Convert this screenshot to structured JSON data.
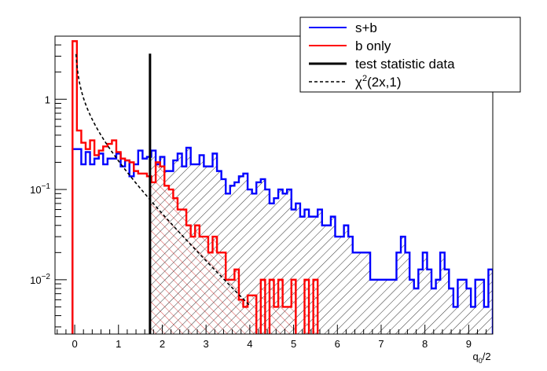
{
  "chart_data": {
    "type": "histogram",
    "xlabel": "q",
    "xlabel_sub": "0",
    "xlabel_suffix": "/2",
    "xlim": [
      -0.45,
      9.55
    ],
    "ylim": [
      0.0025,
      5
    ],
    "yscale": "log",
    "x_ticks": [
      {
        "value": 0,
        "label": "0"
      },
      {
        "value": 1,
        "label": "1"
      },
      {
        "value": 2,
        "label": "2"
      },
      {
        "value": 3,
        "label": "3"
      },
      {
        "value": 4,
        "label": "4"
      },
      {
        "value": 5,
        "label": "5"
      },
      {
        "value": 6,
        "label": "6"
      },
      {
        "value": 7,
        "label": "7"
      },
      {
        "value": 8,
        "label": "8"
      },
      {
        "value": 9,
        "label": "9"
      }
    ],
    "y_ticks": [
      {
        "value": 1,
        "label": "1"
      },
      {
        "value": 0.1,
        "base": "10",
        "exp": "−1"
      },
      {
        "value": 0.01,
        "base": "10",
        "exp": "−2"
      }
    ],
    "bin_width": 0.1,
    "sb_start": -0.05,
    "sb_values": [
      0.28,
      0.28,
      0.19,
      0.26,
      0.19,
      0.22,
      0.25,
      0.19,
      0.22,
      0.22,
      0.25,
      0.18,
      0.21,
      0.14,
      0.19,
      0.27,
      0.22,
      0.23,
      0.27,
      0.19,
      0.23,
      0.16,
      0.16,
      0.21,
      0.25,
      0.18,
      0.29,
      0.19,
      0.19,
      0.24,
      0.18,
      0.18,
      0.25,
      0.16,
      0.13,
      0.09,
      0.11,
      0.12,
      0.14,
      0.15,
      0.1,
      0.09,
      0.12,
      0.13,
      0.1,
      0.07,
      0.08,
      0.1,
      0.09,
      0.1,
      0.06,
      0.07,
      0.05,
      0.06,
      0.05,
      0.05,
      0.06,
      0.04,
      0.04,
      0.05,
      0.03,
      0.03,
      0.04,
      0.03,
      0.02,
      0.02,
      0.02,
      0.02,
      0.01,
      0.01,
      0.01,
      0.01,
      0.01,
      0.01,
      0.02,
      0.03,
      0.02,
      0.01,
      0.008,
      0.013,
      0.02,
      0.013,
      0.008,
      0.01,
      0.02,
      0.013,
      0.008,
      0.005,
      0.01,
      0.01,
      0.008,
      0.005,
      0.01,
      0.01,
      0.005,
      0.013
    ],
    "b_start": -0.05,
    "b_values": [
      4.4,
      0.45,
      0.33,
      0.28,
      0.35,
      0.24,
      0.27,
      0.3,
      0.32,
      0.35,
      0.26,
      0.22,
      0.21,
      0.2,
      0.16,
      0.15,
      0.15,
      0.14,
      0.12,
      0.2,
      0.18,
      0.11,
      0.1,
      0.08,
      0.06,
      0.06,
      0.04,
      0.03,
      0.04,
      0.03,
      0.03,
      0.02,
      0.03,
      0.02,
      0.02,
      0.01,
      0.01,
      0.013,
      0.006,
      0.005,
      0.0067,
      0.0067,
      0.002,
      0.01,
      0.002,
      0.01,
      0.005,
      0.01,
      0.005,
      0.005,
      0.01,
      0.002,
      0.002,
      0.01,
      0.002,
      0.01,
      0.002,
      0.002,
      0.002,
      0.002,
      0.002
    ],
    "chi2": {
      "x_start": 0.03,
      "x_end": 4.0,
      "label_base": "χ",
      "label_sup": "2",
      "label_rest": "(2x,1)"
    },
    "observed": {
      "x": 1.72,
      "y_top": 3.2
    },
    "series": [
      {
        "name": "s+b",
        "color": "#0000ff"
      },
      {
        "name": "b only",
        "color": "#ff0000"
      },
      {
        "name": "test statistic data",
        "color": "#000000"
      }
    ]
  }
}
